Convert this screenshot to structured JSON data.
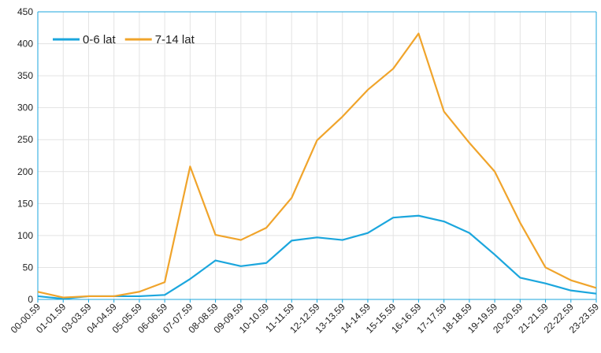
{
  "chart_data": {
    "type": "line",
    "categories": [
      "00-00.59",
      "01-01.59",
      "03-03.59",
      "04-04.59",
      "05-05.59",
      "06-06.59",
      "07-07.59",
      "08-08.59",
      "09-09.59",
      "10-10.59",
      "11-11.59",
      "12-12.59",
      "13-13.59",
      "14-14.59",
      "15-15.59",
      "16-16.59",
      "17-17.59",
      "18-18.59",
      "19-19.59",
      "20-20.59",
      "21-21.59",
      "22-22.59",
      "23-23.59"
    ],
    "series": [
      {
        "name": "0-6 lat",
        "color": "#1ba6dd",
        "values": [
          5,
          1,
          5,
          5,
          5,
          7,
          32,
          61,
          52,
          57,
          92,
          97,
          93,
          104,
          128,
          131,
          122,
          104,
          70,
          34,
          25,
          14,
          9
        ]
      },
      {
        "name": "7-14 lat",
        "color": "#f0a42b",
        "values": [
          12,
          3,
          5,
          5,
          12,
          27,
          208,
          101,
          93,
          112,
          159,
          249,
          286,
          328,
          361,
          416,
          294,
          245,
          200,
          120,
          50,
          30,
          18
        ]
      }
    ],
    "ylim": [
      0,
      450
    ],
    "yticks": [
      0,
      50,
      100,
      150,
      200,
      250,
      300,
      350,
      400,
      450
    ],
    "grid": true,
    "legend": "top-left"
  }
}
